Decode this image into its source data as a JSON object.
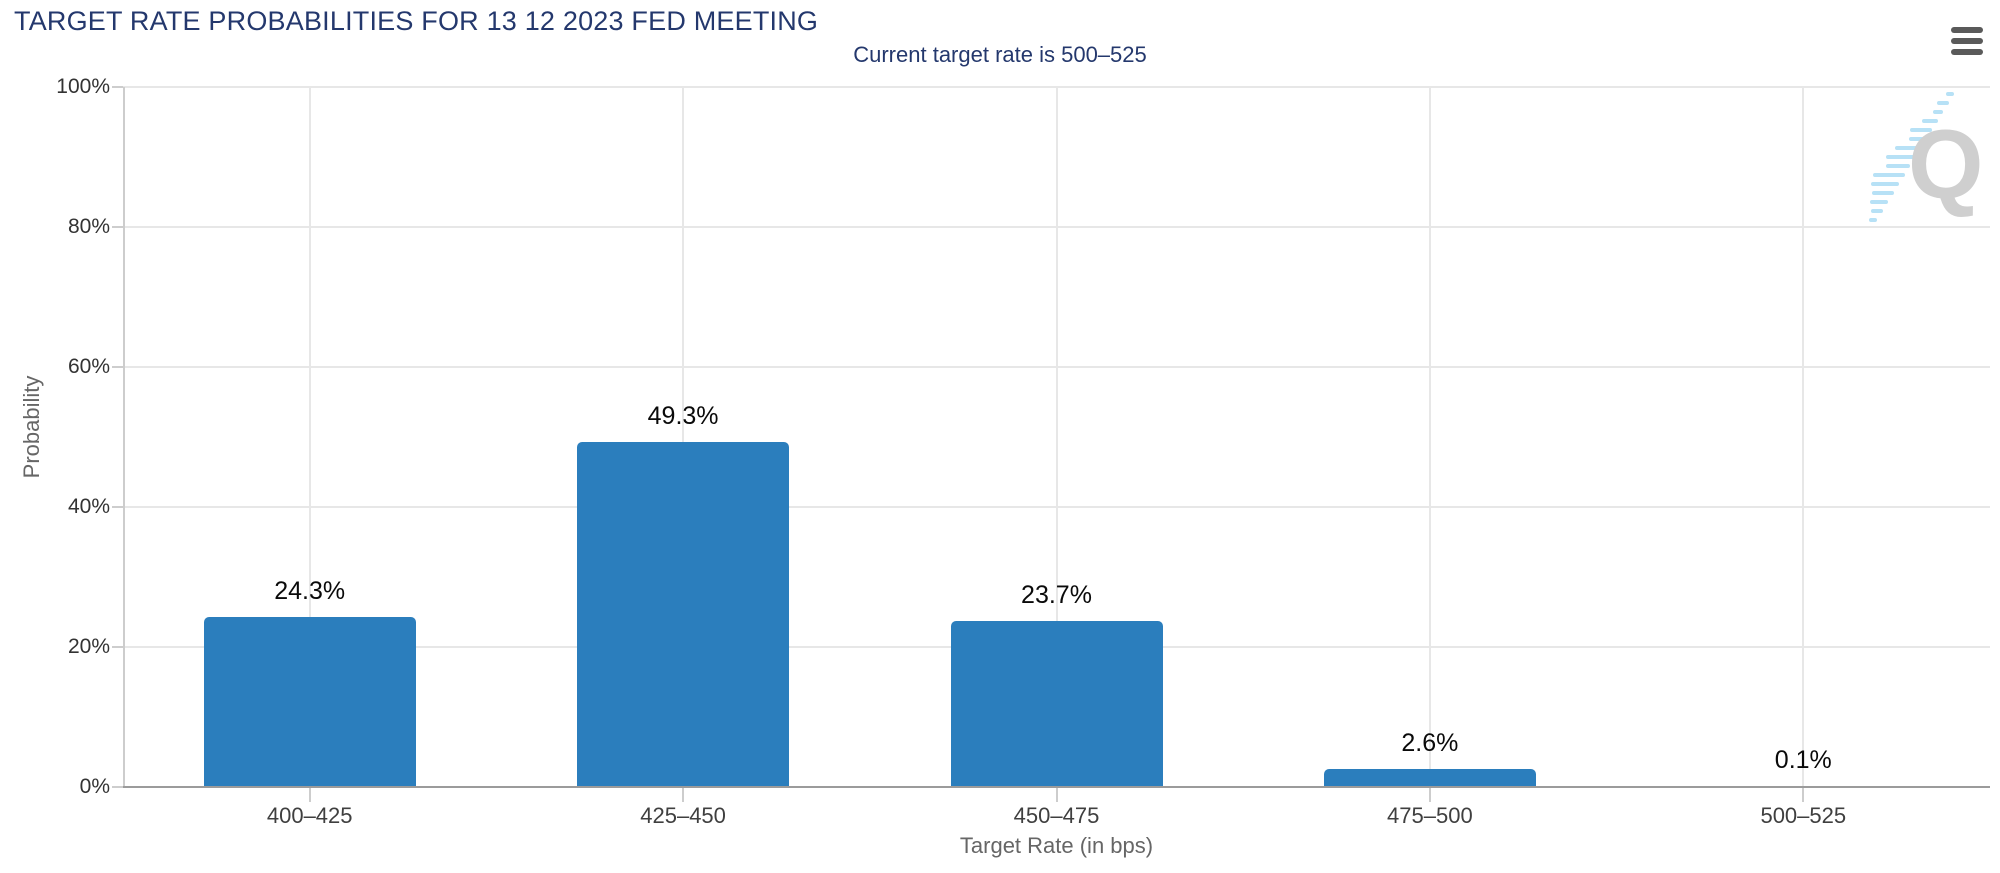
{
  "chart_data": {
    "type": "bar",
    "title": "TARGET RATE PROBABILITIES FOR 13 12 2023 FED MEETING",
    "subtitle": "Current target rate is 500–525",
    "categories": [
      "400–425",
      "425–450",
      "450–475",
      "475–500",
      "500–525"
    ],
    "values": [
      24.3,
      49.3,
      23.7,
      2.6,
      0.1
    ],
    "value_labels": [
      "24.3%",
      "49.3%",
      "23.7%",
      "2.6%",
      "0.1%"
    ],
    "xlabel": "Target Rate (in bps)",
    "ylabel": "Probability",
    "ylim": [
      0,
      100
    ],
    "y_tick_values": [
      0,
      20,
      40,
      60,
      80,
      100
    ],
    "y_tick_labels": [
      "0%",
      "20%",
      "40%",
      "60%",
      "80%",
      "100%"
    ],
    "grid": true,
    "legend": "none"
  },
  "watermark": {
    "letter": "Q"
  },
  "menu": {
    "icon": "hamburger-icon"
  },
  "colors": {
    "title_color": "#24386d",
    "subtitle_color": "#24386d",
    "bar_color": "#2b7ebd",
    "grid_color": "#e7e7e7",
    "x_axis_line_color": "#9b9b9b",
    "y_axis_line_color": "#cdcdcd",
    "tick_color": "#cdcdcd",
    "y_tick_label_color": "#333333",
    "x_tick_label_color": "#3f3f3f",
    "axis_title_color": "#666666",
    "data_label_color": "#0a0a0a",
    "watermark_color": "#cfcfcf",
    "watermark_dash_color": "#b7e1f6",
    "menu_icon_color": "#5a5a5a"
  }
}
